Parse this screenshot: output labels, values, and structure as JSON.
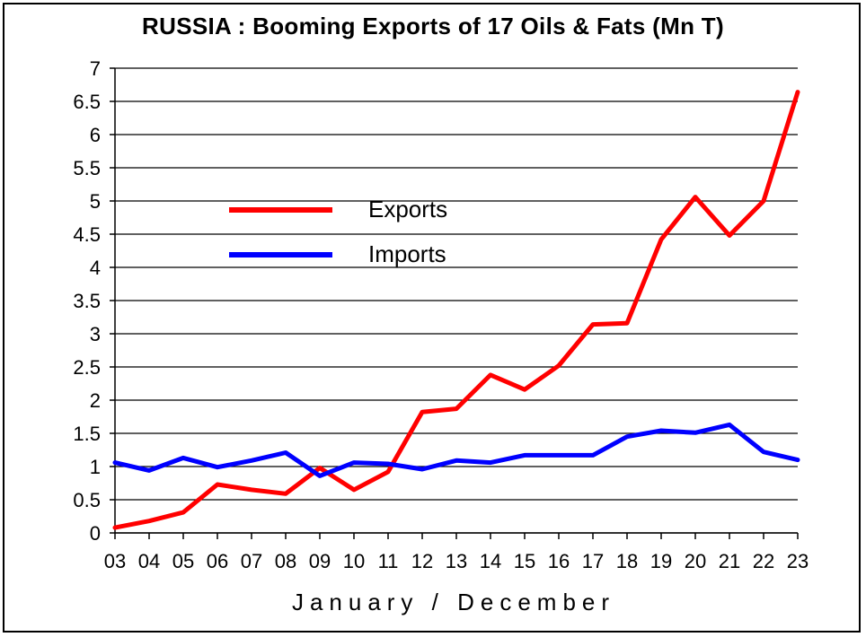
{
  "chart_data": {
    "type": "line",
    "title": "RUSSIA : Booming Exports of 17 Oils & Fats (Mn T)",
    "xlabel": "January / December",
    "ylabel": "",
    "categories": [
      "03",
      "04",
      "05",
      "06",
      "07",
      "08",
      "09",
      "10",
      "11",
      "12",
      "13",
      "14",
      "15",
      "16",
      "17",
      "18",
      "19",
      "20",
      "21",
      "22",
      "23"
    ],
    "ylim": [
      0,
      7
    ],
    "yticks": [
      "0",
      "0.5",
      "1",
      "1.5",
      "2",
      "2.5",
      "3",
      "3.5",
      "4",
      "4.5",
      "5",
      "5.5",
      "6",
      "6.5",
      "7"
    ],
    "grid": "horizontal",
    "legend_position": "upper-left",
    "series": [
      {
        "name": "Exports",
        "color": "#ff0000",
        "values": [
          0.08,
          0.18,
          0.31,
          0.73,
          0.65,
          0.59,
          0.98,
          0.65,
          0.92,
          1.82,
          1.87,
          2.38,
          2.16,
          2.52,
          3.14,
          3.16,
          4.42,
          5.06,
          4.48,
          5.0,
          6.64
        ]
      },
      {
        "name": "Imports",
        "color": "#0000ff",
        "values": [
          1.06,
          0.94,
          1.13,
          0.99,
          1.09,
          1.21,
          0.86,
          1.06,
          1.04,
          0.96,
          1.09,
          1.06,
          1.17,
          1.17,
          1.17,
          1.45,
          1.54,
          1.51,
          1.63,
          1.22,
          1.1
        ]
      }
    ]
  }
}
